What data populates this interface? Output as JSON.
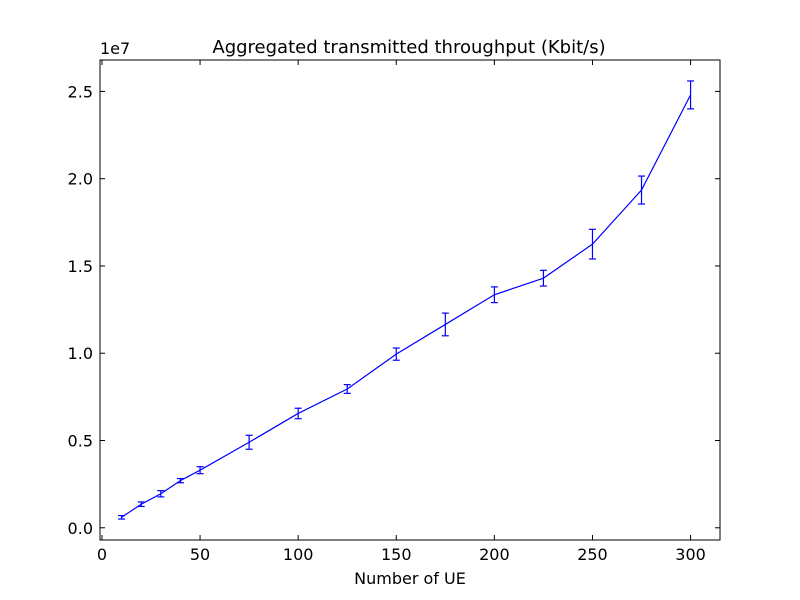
{
  "chart_data": {
    "type": "line",
    "title": "Aggregated transmitted throughput (Kbit/s)",
    "xlabel": "Number of UE",
    "ylabel": "",
    "y_offset_label": "1e7",
    "xlim": [
      -1,
      315
    ],
    "ylim": [
      -0.07,
      2.68
    ],
    "y_scale_factor": 10000000,
    "x_ticks": [
      0,
      50,
      100,
      150,
      200,
      250,
      300
    ],
    "x_tick_labels": [
      "0",
      "50",
      "100",
      "150",
      "200",
      "250",
      "300"
    ],
    "y_ticks": [
      0.0,
      0.5,
      1.0,
      1.5,
      2.0,
      2.5
    ],
    "y_tick_labels": [
      "0.0",
      "0.5",
      "1.0",
      "1.5",
      "2.0",
      "2.5"
    ],
    "grid": false,
    "legend": "none",
    "color": "#0000ff",
    "series": [
      {
        "x": [
          10,
          20,
          30,
          40,
          50,
          75,
          100,
          125,
          150,
          175,
          200,
          225,
          250,
          275,
          300
        ],
        "y": [
          0.06,
          0.135,
          0.195,
          0.27,
          0.33,
          0.49,
          0.655,
          0.795,
          0.995,
          1.165,
          1.335,
          1.43,
          1.625,
          1.935,
          2.48
        ],
        "err": [
          0.01,
          0.013,
          0.018,
          0.012,
          0.02,
          0.04,
          0.03,
          0.025,
          0.035,
          0.065,
          0.045,
          0.045,
          0.085,
          0.08,
          0.08
        ]
      }
    ]
  }
}
